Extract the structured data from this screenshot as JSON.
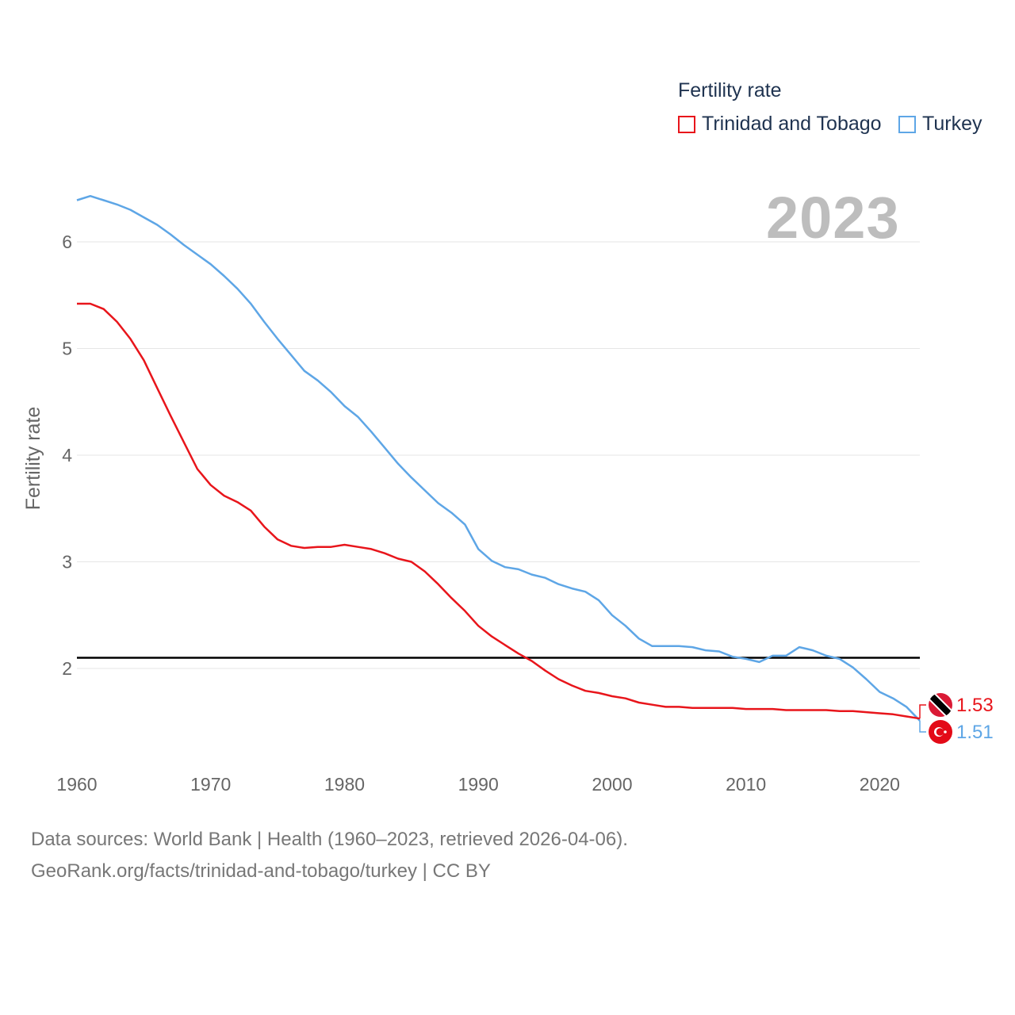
{
  "legend": {
    "title": "Fertility rate",
    "items": [
      {
        "label": "Trinidad and Tobago",
        "color": "#e8151b"
      },
      {
        "label": "Turkey",
        "color": "#5ea6e6"
      }
    ]
  },
  "current_year": "2023",
  "source": {
    "line1": "Data sources: World Bank | Health (1960–2023, retrieved 2026-04-06).",
    "line2": "GeoRank.org/facts/trinidad-and-tobago/turkey | CC BY"
  },
  "chart_data": {
    "type": "line",
    "title": "",
    "xlabel": "",
    "ylabel": "Fertility rate",
    "xlim": [
      1960,
      2023
    ],
    "ylim": [
      1.2,
      6.5
    ],
    "yticks": [
      2,
      3,
      4,
      5,
      6
    ],
    "xticks": [
      1960,
      1970,
      1980,
      1990,
      2000,
      2010,
      2020
    ],
    "reference_line": {
      "value": 2.1,
      "color": "#000000"
    },
    "x": [
      1960,
      1961,
      1962,
      1963,
      1964,
      1965,
      1966,
      1967,
      1968,
      1969,
      1970,
      1971,
      1972,
      1973,
      1974,
      1975,
      1976,
      1977,
      1978,
      1979,
      1980,
      1981,
      1982,
      1983,
      1984,
      1985,
      1986,
      1987,
      1988,
      1989,
      1990,
      1991,
      1992,
      1993,
      1994,
      1995,
      1996,
      1997,
      1998,
      1999,
      2000,
      2001,
      2002,
      2003,
      2004,
      2005,
      2006,
      2007,
      2008,
      2009,
      2010,
      2011,
      2012,
      2013,
      2014,
      2015,
      2016,
      2017,
      2018,
      2019,
      2020,
      2021,
      2022,
      2023
    ],
    "series": [
      {
        "name": "Trinidad and Tobago",
        "color": "#e8151b",
        "end_label": "1.53",
        "values": [
          5.42,
          5.42,
          5.37,
          5.25,
          5.09,
          4.89,
          4.63,
          4.37,
          4.12,
          3.87,
          3.72,
          3.62,
          3.56,
          3.48,
          3.33,
          3.21,
          3.15,
          3.13,
          3.14,
          3.14,
          3.16,
          3.14,
          3.12,
          3.08,
          3.03,
          3.0,
          2.91,
          2.79,
          2.66,
          2.54,
          2.4,
          2.3,
          2.22,
          2.14,
          2.07,
          1.98,
          1.9,
          1.84,
          1.79,
          1.77,
          1.74,
          1.72,
          1.68,
          1.66,
          1.64,
          1.64,
          1.63,
          1.63,
          1.63,
          1.63,
          1.62,
          1.62,
          1.62,
          1.61,
          1.61,
          1.61,
          1.61,
          1.6,
          1.6,
          1.59,
          1.58,
          1.57,
          1.55,
          1.53
        ]
      },
      {
        "name": "Turkey",
        "color": "#5ea6e6",
        "end_label": "1.51",
        "values": [
          6.39,
          6.43,
          6.39,
          6.35,
          6.3,
          6.23,
          6.16,
          6.07,
          5.97,
          5.88,
          5.79,
          5.68,
          5.56,
          5.42,
          5.25,
          5.09,
          4.94,
          4.79,
          4.7,
          4.59,
          4.46,
          4.36,
          4.22,
          4.07,
          3.92,
          3.79,
          3.67,
          3.55,
          3.46,
          3.35,
          3.12,
          3.01,
          2.95,
          2.93,
          2.88,
          2.85,
          2.79,
          2.75,
          2.72,
          2.64,
          2.5,
          2.4,
          2.28,
          2.21,
          2.21,
          2.21,
          2.2,
          2.17,
          2.16,
          2.11,
          2.09,
          2.06,
          2.12,
          2.12,
          2.2,
          2.17,
          2.12,
          2.09,
          2.01,
          1.9,
          1.78,
          1.72,
          1.64,
          1.51
        ]
      }
    ]
  }
}
